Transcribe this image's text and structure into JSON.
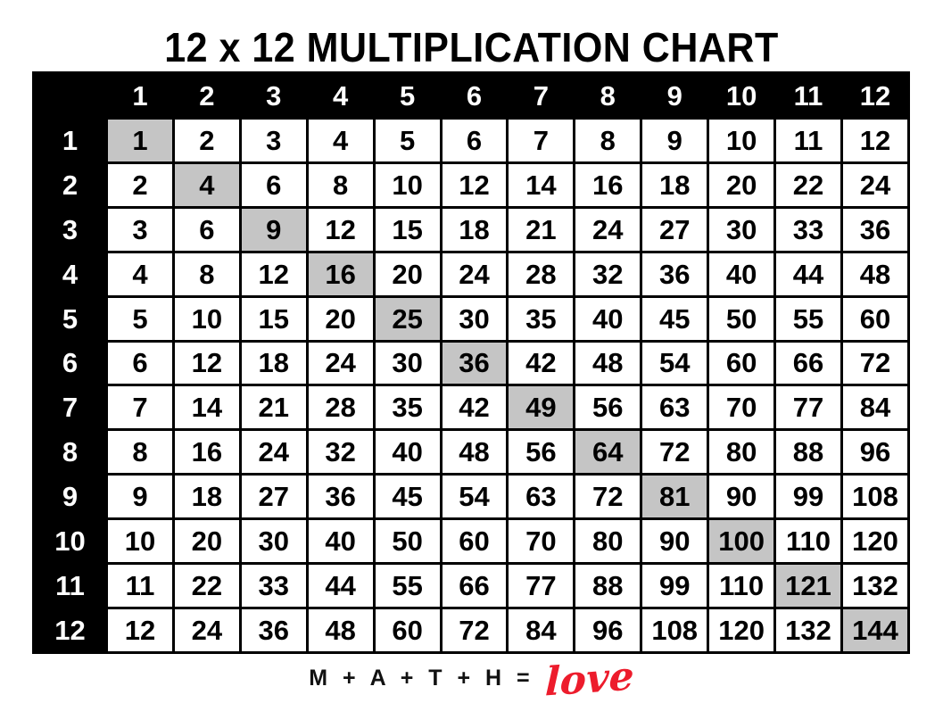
{
  "title": "12 x 12 MULTIPLICATION CHART",
  "footer": {
    "equation": "M + A + T + H =",
    "love_word": "love"
  },
  "colors": {
    "header_bg": "#000000",
    "header_text": "#ffffff",
    "cell_bg": "#ffffff",
    "highlight_bg": "#c5c5c5",
    "border": "#000000",
    "love_red": "#ed1c2c"
  },
  "chart_data": {
    "type": "table",
    "title": "12 x 12 MULTIPLICATION CHART",
    "column_headers": [
      "1",
      "2",
      "3",
      "4",
      "5",
      "6",
      "7",
      "8",
      "9",
      "10",
      "11",
      "12"
    ],
    "row_headers": [
      "1",
      "2",
      "3",
      "4",
      "5",
      "6",
      "7",
      "8",
      "9",
      "10",
      "11",
      "12"
    ],
    "rows": [
      [
        1,
        2,
        3,
        4,
        5,
        6,
        7,
        8,
        9,
        10,
        11,
        12
      ],
      [
        2,
        4,
        6,
        8,
        10,
        12,
        14,
        16,
        18,
        20,
        22,
        24
      ],
      [
        3,
        6,
        9,
        12,
        15,
        18,
        21,
        24,
        27,
        30,
        33,
        36
      ],
      [
        4,
        8,
        12,
        16,
        20,
        24,
        28,
        32,
        36,
        40,
        44,
        48
      ],
      [
        5,
        10,
        15,
        20,
        25,
        30,
        35,
        40,
        45,
        50,
        55,
        60
      ],
      [
        6,
        12,
        18,
        24,
        30,
        36,
        42,
        48,
        54,
        60,
        66,
        72
      ],
      [
        7,
        14,
        21,
        28,
        35,
        42,
        49,
        56,
        63,
        70,
        77,
        84
      ],
      [
        8,
        16,
        24,
        32,
        40,
        48,
        56,
        64,
        72,
        80,
        88,
        96
      ],
      [
        9,
        18,
        27,
        36,
        45,
        54,
        63,
        72,
        81,
        90,
        99,
        108
      ],
      [
        10,
        20,
        30,
        40,
        50,
        60,
        70,
        80,
        90,
        100,
        110,
        120
      ],
      [
        11,
        22,
        33,
        44,
        55,
        66,
        77,
        88,
        99,
        110,
        121,
        132
      ],
      [
        12,
        24,
        36,
        48,
        60,
        72,
        84,
        96,
        108,
        120,
        132,
        144
      ]
    ],
    "highlighted_diagonal_values": [
      1,
      4,
      9,
      16,
      25,
      36,
      49,
      64,
      81,
      100,
      121,
      144
    ],
    "highlight_note": "diagonal perfect-square cells shaded gray",
    "grid": true,
    "legend_position": "none"
  }
}
